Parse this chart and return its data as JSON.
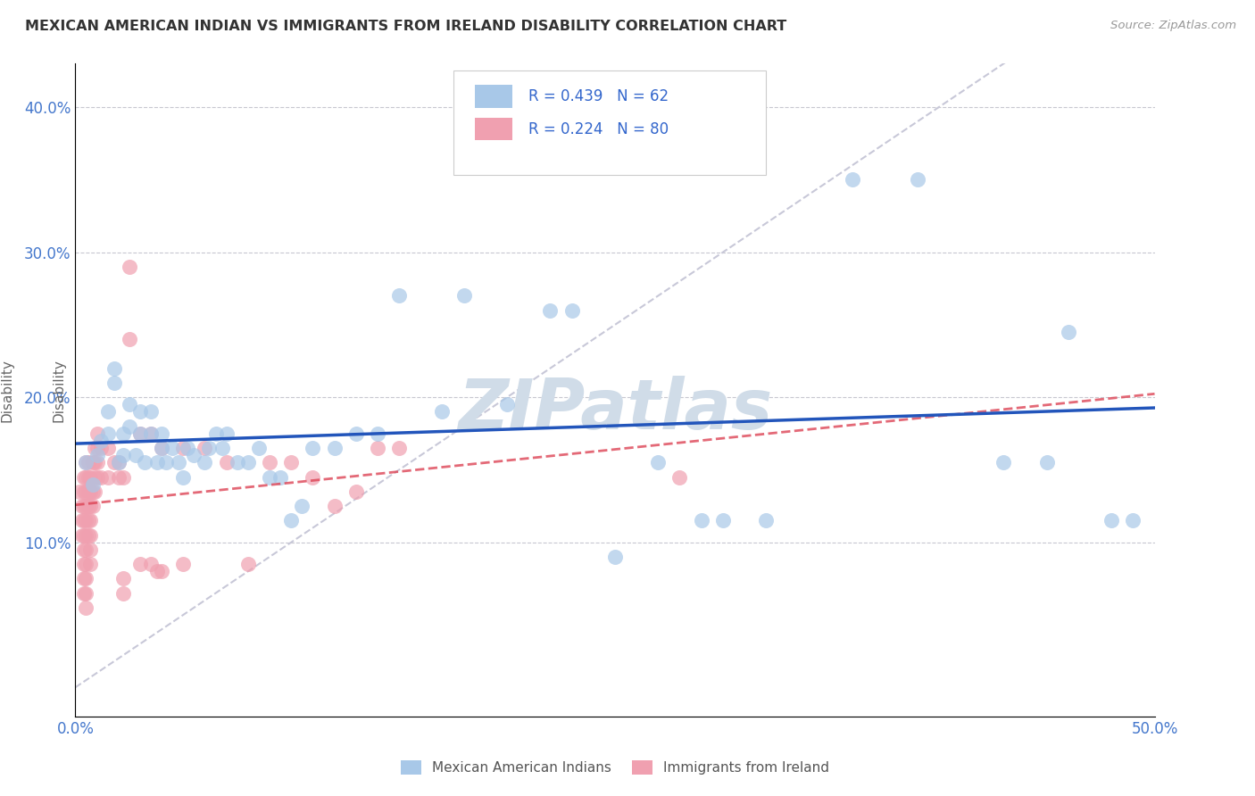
{
  "title": "MEXICAN AMERICAN INDIAN VS IMMIGRANTS FROM IRELAND DISABILITY CORRELATION CHART",
  "source": "Source: ZipAtlas.com",
  "xlabel_blue": "Mexican American Indians",
  "xlabel_pink": "Immigrants from Ireland",
  "ylabel": "Disability",
  "R_blue": 0.439,
  "N_blue": 62,
  "R_pink": 0.224,
  "N_pink": 80,
  "xlim": [
    0,
    0.5
  ],
  "ylim": [
    -0.02,
    0.43
  ],
  "y_ticks": [
    0.1,
    0.2,
    0.3,
    0.4
  ],
  "y_tick_labels": [
    "10.0%",
    "20.0%",
    "30.0%",
    "40.0%"
  ],
  "x_ticks": [
    0.0,
    0.1,
    0.2,
    0.3,
    0.4,
    0.5
  ],
  "x_tick_labels": [
    "0.0%",
    "",
    "",
    "",
    "",
    "50.0%"
  ],
  "color_blue": "#A8C8E8",
  "color_pink": "#F0A0B0",
  "line_color_blue": "#2255BB",
  "line_color_pink": "#DD4455",
  "line_color_diag": "#C8C8D8",
  "blue_points": [
    [
      0.005,
      0.155
    ],
    [
      0.008,
      0.14
    ],
    [
      0.01,
      0.16
    ],
    [
      0.012,
      0.17
    ],
    [
      0.015,
      0.19
    ],
    [
      0.015,
      0.175
    ],
    [
      0.018,
      0.21
    ],
    [
      0.018,
      0.22
    ],
    [
      0.02,
      0.155
    ],
    [
      0.022,
      0.16
    ],
    [
      0.022,
      0.175
    ],
    [
      0.025,
      0.18
    ],
    [
      0.025,
      0.195
    ],
    [
      0.028,
      0.16
    ],
    [
      0.03,
      0.175
    ],
    [
      0.03,
      0.19
    ],
    [
      0.032,
      0.155
    ],
    [
      0.035,
      0.175
    ],
    [
      0.035,
      0.19
    ],
    [
      0.038,
      0.155
    ],
    [
      0.04,
      0.165
    ],
    [
      0.04,
      0.175
    ],
    [
      0.042,
      0.155
    ],
    [
      0.045,
      0.165
    ],
    [
      0.048,
      0.155
    ],
    [
      0.05,
      0.145
    ],
    [
      0.052,
      0.165
    ],
    [
      0.055,
      0.16
    ],
    [
      0.06,
      0.155
    ],
    [
      0.062,
      0.165
    ],
    [
      0.065,
      0.175
    ],
    [
      0.068,
      0.165
    ],
    [
      0.07,
      0.175
    ],
    [
      0.075,
      0.155
    ],
    [
      0.08,
      0.155
    ],
    [
      0.085,
      0.165
    ],
    [
      0.09,
      0.145
    ],
    [
      0.095,
      0.145
    ],
    [
      0.1,
      0.115
    ],
    [
      0.105,
      0.125
    ],
    [
      0.11,
      0.165
    ],
    [
      0.12,
      0.165
    ],
    [
      0.13,
      0.175
    ],
    [
      0.14,
      0.175
    ],
    [
      0.15,
      0.27
    ],
    [
      0.17,
      0.19
    ],
    [
      0.18,
      0.27
    ],
    [
      0.2,
      0.195
    ],
    [
      0.22,
      0.26
    ],
    [
      0.23,
      0.26
    ],
    [
      0.25,
      0.09
    ],
    [
      0.27,
      0.155
    ],
    [
      0.29,
      0.115
    ],
    [
      0.3,
      0.115
    ],
    [
      0.32,
      0.115
    ],
    [
      0.36,
      0.35
    ],
    [
      0.39,
      0.35
    ],
    [
      0.43,
      0.155
    ],
    [
      0.45,
      0.155
    ],
    [
      0.46,
      0.245
    ],
    [
      0.48,
      0.115
    ],
    [
      0.49,
      0.115
    ]
  ],
  "pink_points": [
    [
      0.002,
      0.135
    ],
    [
      0.003,
      0.125
    ],
    [
      0.003,
      0.115
    ],
    [
      0.003,
      0.105
    ],
    [
      0.004,
      0.145
    ],
    [
      0.004,
      0.135
    ],
    [
      0.004,
      0.125
    ],
    [
      0.004,
      0.115
    ],
    [
      0.004,
      0.105
    ],
    [
      0.004,
      0.095
    ],
    [
      0.004,
      0.085
    ],
    [
      0.004,
      0.075
    ],
    [
      0.004,
      0.065
    ],
    [
      0.005,
      0.155
    ],
    [
      0.005,
      0.145
    ],
    [
      0.005,
      0.135
    ],
    [
      0.005,
      0.125
    ],
    [
      0.005,
      0.115
    ],
    [
      0.005,
      0.105
    ],
    [
      0.005,
      0.095
    ],
    [
      0.005,
      0.085
    ],
    [
      0.005,
      0.075
    ],
    [
      0.005,
      0.065
    ],
    [
      0.005,
      0.055
    ],
    [
      0.006,
      0.155
    ],
    [
      0.006,
      0.145
    ],
    [
      0.006,
      0.135
    ],
    [
      0.006,
      0.125
    ],
    [
      0.006,
      0.115
    ],
    [
      0.006,
      0.105
    ],
    [
      0.007,
      0.145
    ],
    [
      0.007,
      0.135
    ],
    [
      0.007,
      0.125
    ],
    [
      0.007,
      0.115
    ],
    [
      0.007,
      0.105
    ],
    [
      0.007,
      0.095
    ],
    [
      0.007,
      0.085
    ],
    [
      0.008,
      0.155
    ],
    [
      0.008,
      0.135
    ],
    [
      0.008,
      0.125
    ],
    [
      0.009,
      0.165
    ],
    [
      0.009,
      0.155
    ],
    [
      0.009,
      0.145
    ],
    [
      0.009,
      0.135
    ],
    [
      0.01,
      0.175
    ],
    [
      0.01,
      0.165
    ],
    [
      0.01,
      0.155
    ],
    [
      0.01,
      0.145
    ],
    [
      0.012,
      0.165
    ],
    [
      0.012,
      0.145
    ],
    [
      0.015,
      0.165
    ],
    [
      0.015,
      0.145
    ],
    [
      0.018,
      0.155
    ],
    [
      0.02,
      0.155
    ],
    [
      0.02,
      0.145
    ],
    [
      0.022,
      0.145
    ],
    [
      0.022,
      0.075
    ],
    [
      0.022,
      0.065
    ],
    [
      0.025,
      0.29
    ],
    [
      0.025,
      0.24
    ],
    [
      0.03,
      0.175
    ],
    [
      0.03,
      0.085
    ],
    [
      0.035,
      0.175
    ],
    [
      0.035,
      0.085
    ],
    [
      0.038,
      0.08
    ],
    [
      0.04,
      0.165
    ],
    [
      0.04,
      0.08
    ],
    [
      0.05,
      0.165
    ],
    [
      0.05,
      0.085
    ],
    [
      0.06,
      0.165
    ],
    [
      0.07,
      0.155
    ],
    [
      0.08,
      0.085
    ],
    [
      0.09,
      0.155
    ],
    [
      0.1,
      0.155
    ],
    [
      0.11,
      0.145
    ],
    [
      0.12,
      0.125
    ],
    [
      0.13,
      0.135
    ],
    [
      0.14,
      0.165
    ],
    [
      0.15,
      0.165
    ],
    [
      0.28,
      0.145
    ]
  ],
  "background_color": "#FFFFFF",
  "grid_color": "#C8C8D0",
  "watermark_text": "ZIPatlas",
  "watermark_color": "#D0DCE8",
  "legend_R_blue_text": "R = 0.439   N = 62",
  "legend_R_pink_text": "R = 0.224   N = 80"
}
